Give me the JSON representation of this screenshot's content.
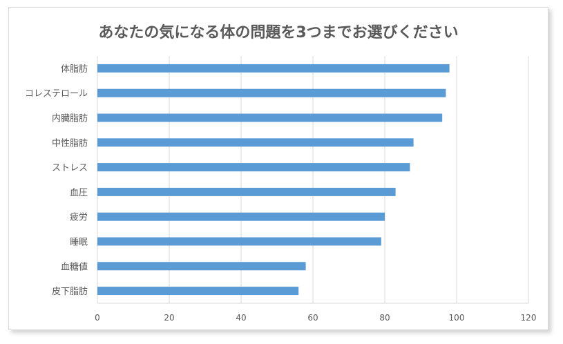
{
  "chart_data": {
    "type": "bar",
    "orientation": "horizontal",
    "title": "あなたの気になる体の問題を3つまでお選びください",
    "categories": [
      "体脂肪",
      "コレステロール",
      "内臓脂肪",
      "中性脂肪",
      "ストレス",
      "血圧",
      "疲労",
      "睡眠",
      "血糖値",
      "皮下脂肪"
    ],
    "values": [
      98,
      97,
      96,
      88,
      87,
      83,
      80,
      79,
      58,
      56
    ],
    "xlim": [
      0,
      120
    ],
    "xticks": [
      0,
      20,
      40,
      60,
      80,
      100,
      120
    ],
    "grid": true,
    "legend": "none",
    "bar_color": "#5B9BD5",
    "grid_color": "#d9d9d9"
  }
}
